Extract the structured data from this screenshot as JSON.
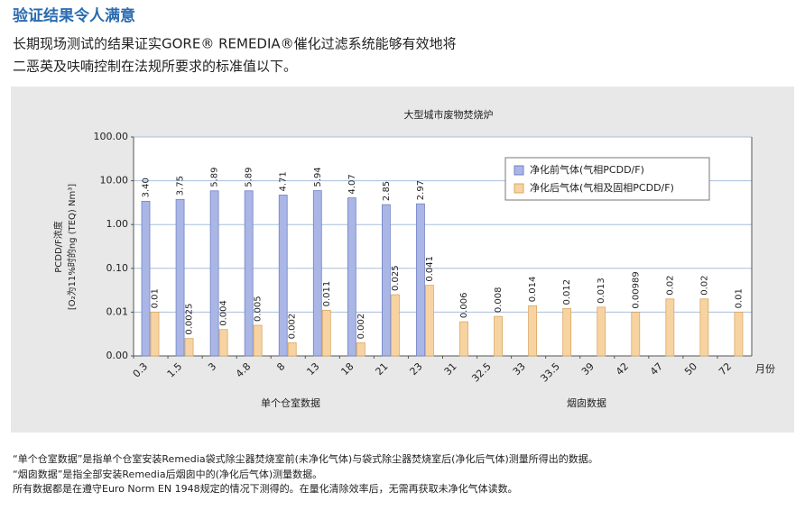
{
  "header": {
    "title": "验证结果令人满意"
  },
  "intro": {
    "lines": [
      "长期现场测试的结果证实GORE® REMEDIA®催化过滤系统能够有效地将",
      "二恶英及呋喃控制在法规所要求的标准值以下。"
    ]
  },
  "chart_data": {
    "type": "bar",
    "title": "大型城市废物焚烧炉",
    "ylabel": [
      "PCDD/F浓度",
      "[O₂为11%时的ng (TEQ) Nm³]"
    ],
    "xlabel": "月份",
    "annotations": [
      "单个仓室数据",
      "烟囱数据"
    ],
    "categories": [
      "0.3",
      "1.5",
      "3",
      "4.8",
      "8",
      "13",
      "18",
      "21",
      "23",
      "31",
      "32.5",
      "33",
      "33.5",
      "39",
      "42",
      "47",
      "50",
      "72"
    ],
    "series": [
      {
        "name": "净化前气体(气相PCDD/F)",
        "color": "#aab6e6",
        "stroke": "#7282c4",
        "values": [
          3.4,
          3.75,
          5.89,
          5.89,
          4.71,
          5.94,
          4.07,
          2.85,
          2.97,
          null,
          null,
          null,
          null,
          null,
          null,
          null,
          null,
          null
        ],
        "value_labels": [
          "3.40",
          "3.75",
          "5.89",
          "5.89",
          "4.71",
          "5.94",
          "4.07",
          "2.85",
          "2.97",
          null,
          null,
          null,
          null,
          null,
          null,
          null,
          null,
          null
        ]
      },
      {
        "name": "净化后气体(气相及固相PCDD/F)",
        "color": "#f8d3a2",
        "stroke": "#d8a862",
        "values": [
          0.01,
          0.0025,
          0.004,
          0.005,
          0.002,
          0.011,
          0.002,
          0.025,
          0.041,
          0.006,
          0.008,
          0.014,
          0.012,
          0.013,
          0.00989,
          0.02,
          0.02,
          0.01
        ]
      }
    ],
    "yscale": "log",
    "ylim": [
      0.001,
      100
    ],
    "yticks": [
      {
        "value": 0.001,
        "label": "0.00"
      },
      {
        "value": 0.01,
        "label": "0.01"
      },
      {
        "value": 0.1,
        "label": "0.10"
      },
      {
        "value": 1,
        "label": "1.00"
      },
      {
        "value": 10,
        "label": "10.00"
      },
      {
        "value": 100,
        "label": "100.00"
      }
    ],
    "grid": true,
    "legend": "upper right"
  },
  "notes": [
    "“单个仓室数据”是指单个仓室安装Remedia袋式除尘器焚烧室前(未净化气体)与袋式除尘器焚烧室后(净化后气体)测量所得出的数据。",
    "“烟囱数据”是指全部安装Remedia后烟囱中的(净化后气体)测量数据。",
    "所有数据都是在遵守Euro Norm EN 1948规定的情况下测得的。在量化清除效率后，无需再获取未净化气体读数。"
  ]
}
